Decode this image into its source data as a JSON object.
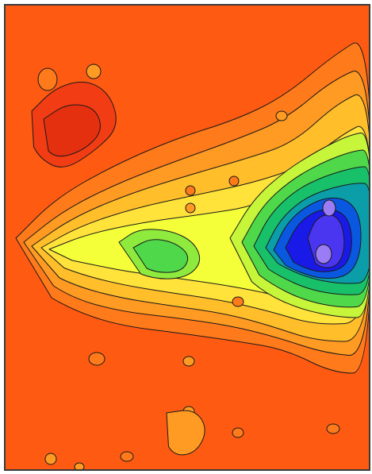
{
  "map": {
    "type": "contour",
    "colors": {
      "frame": "#3a3a3a",
      "background": "#ff5a12",
      "contour_line": "#1a1a1a",
      "palette_low_to_high": [
        "#ff5a12",
        "#ff7a1a",
        "#ff9a22",
        "#ffbe2a",
        "#ffe23a",
        "#f4ff3a",
        "#c6f53a",
        "#8fea3e",
        "#4fd84a",
        "#18c06a",
        "#0b9ea8",
        "#0a58e0",
        "#1a1ae8",
        "#4a36f0",
        "#9a7cf5"
      ]
    },
    "features": [
      {
        "name": "broad-low-plateau",
        "level": 0
      },
      {
        "name": "ridge-band-mid",
        "level": 3
      },
      {
        "name": "yellow-ridge",
        "level": 5
      },
      {
        "name": "green-pocket-center",
        "level": 8
      },
      {
        "name": "blue-depression-east",
        "level": 14
      },
      {
        "name": "red-basin-northwest",
        "level": -1
      }
    ]
  }
}
